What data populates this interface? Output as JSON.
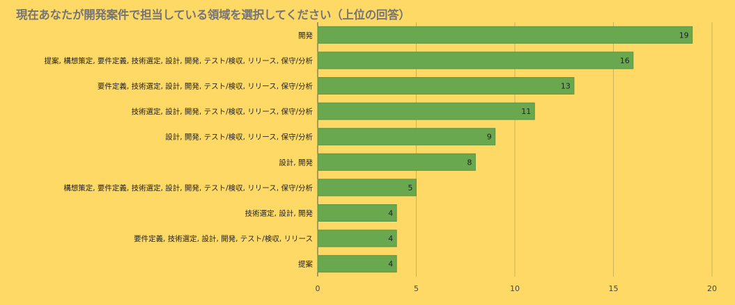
{
  "chart_data": {
    "type": "bar",
    "orientation": "horizontal",
    "title": "現在あなたが開発案件で担当している領域を選択してください（上位の回答）",
    "categories": [
      "開発",
      "提案, 構想策定, 要件定義, 技術選定, 設計, 開発, テスト/検収, リリース, 保守/分析",
      "要件定義, 技術選定, 設計, 開発, テスト/検収, リリース, 保守/分析",
      "技術選定, 設計, 開発, テスト/検収, リリース, 保守/分析",
      "設計, 開発, テスト/検収, リリース, 保守/分析",
      "設計, 開発",
      "構想策定, 要件定義, 技術選定, 設計, 開発, テスト/検収, リリース, 保守/分析",
      "技術選定, 設計, 開発",
      "要件定義, 技術選定, 設計, 開発, テスト/検収, リリース",
      "提案"
    ],
    "values": [
      19,
      16,
      13,
      11,
      9,
      8,
      5,
      4,
      4,
      4
    ],
    "xlim": [
      0,
      20
    ],
    "xticks": [
      0,
      5,
      10,
      15,
      20
    ],
    "xlabel": "",
    "ylabel": "",
    "grid": "vertical",
    "legend": "none",
    "colors": {
      "background": "#FFD966",
      "bar": "#6AA84F",
      "bar_stroke": "#5B9443",
      "gridline": "#C9B25A",
      "title": "#757575"
    }
  }
}
